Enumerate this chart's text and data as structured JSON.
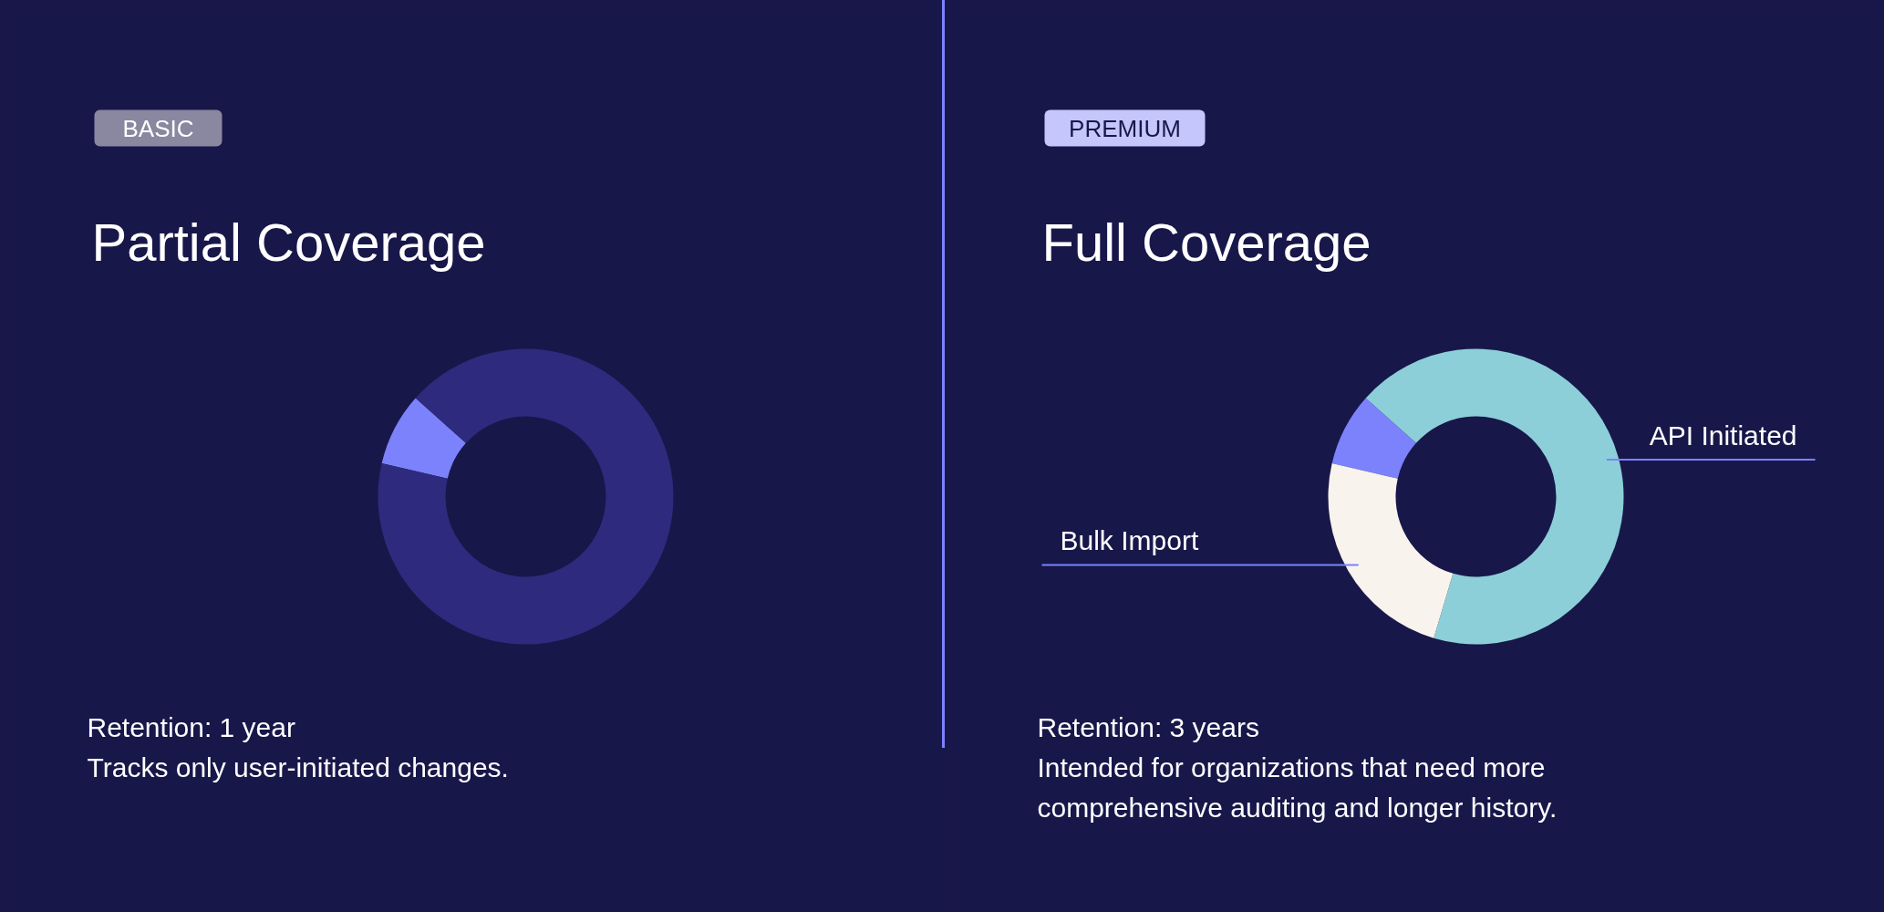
{
  "chart_data": [
    {
      "type": "donut",
      "title": "Partial Coverage",
      "categories": [
        null,
        null
      ],
      "values": [
        8,
        92
      ],
      "colors": [
        "#7b82fb",
        "#2e2b7e"
      ],
      "annotations": [
        "BASIC",
        "Retention: 1 year",
        "Tracks only user-initiated changes."
      ]
    },
    {
      "type": "donut",
      "title": "Full Coverage",
      "categories": [
        null,
        "API Initiated",
        "Bulk Import"
      ],
      "values": [
        8,
        68,
        24
      ],
      "colors": [
        "#7b82fb",
        "#8ccfd8",
        "#f9f3ee"
      ],
      "annotations": [
        "PREMIUM",
        "Retention: 3 years",
        "Intended for organizations that need more",
        "comprehensive auditing and longer history."
      ]
    }
  ]
}
